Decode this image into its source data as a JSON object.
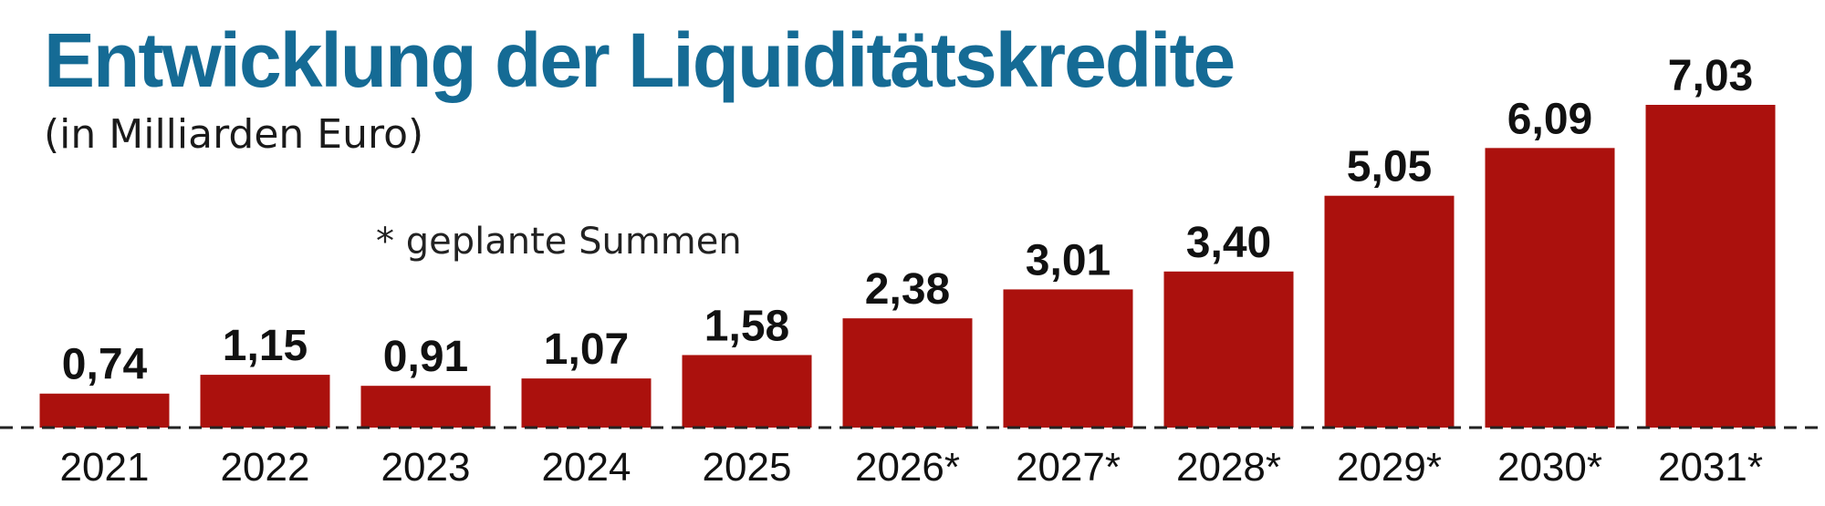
{
  "header": {
    "title": "Entwicklung der Liquiditätskredite",
    "subtitle": "(in Milliarden Euro)",
    "note": "* geplante Summen"
  },
  "colors": {
    "title": "#156b95",
    "bar": "#ab110d",
    "text": "#111111",
    "baseline": "#222222"
  },
  "chart_data": {
    "type": "bar",
    "title": "Entwicklung der Liquiditätskredite",
    "subtitle": "(in Milliarden Euro)",
    "annotations": [
      "* geplante Summen"
    ],
    "categories": [
      "2021",
      "2022",
      "2023",
      "2024",
      "2025",
      "2026*",
      "2027*",
      "2028*",
      "2029*",
      "2030*",
      "2031*"
    ],
    "values": [
      0.74,
      1.15,
      0.91,
      1.07,
      1.58,
      2.38,
      3.01,
      3.4,
      5.05,
      6.09,
      7.03
    ],
    "value_labels": [
      "0,74",
      "1,15",
      "0,91",
      "1,07",
      "1,58",
      "2,38",
      "3,01",
      "3,40",
      "5,05",
      "6,09",
      "7,03"
    ],
    "xlabel": "",
    "ylabel": "",
    "ylim": [
      0,
      7.03
    ],
    "grid": false,
    "baseline": "dashed"
  }
}
